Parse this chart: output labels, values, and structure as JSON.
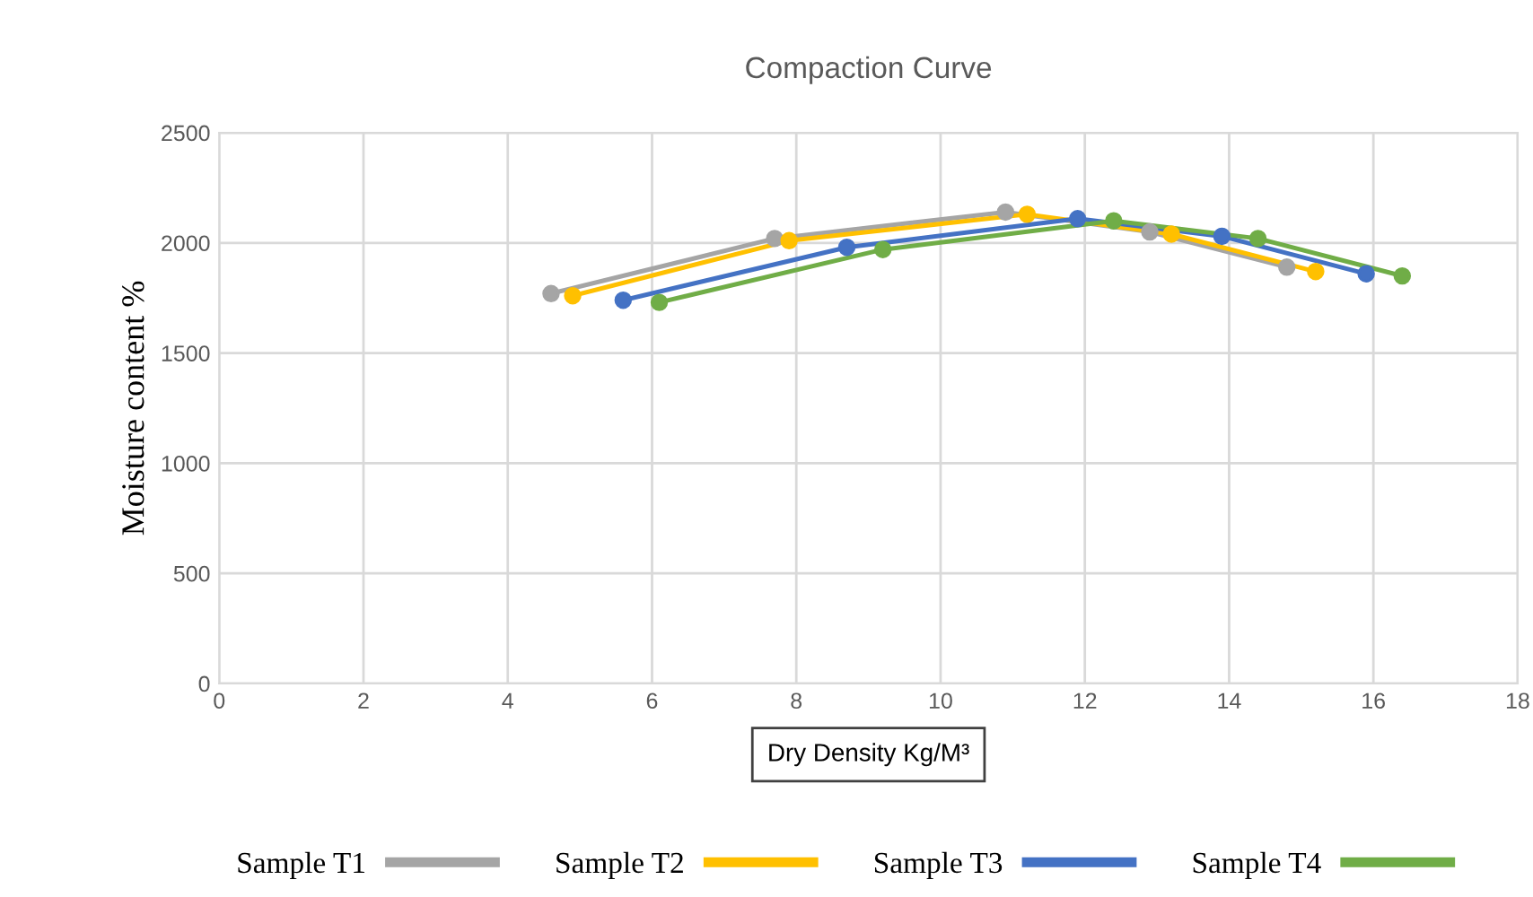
{
  "chart_data": {
    "type": "line",
    "title": "Compaction Curve",
    "xlabel": "Dry Density Kg/M³",
    "ylabel": "Moisture content %",
    "xlim": [
      0,
      18
    ],
    "xticks": [
      0,
      2,
      4,
      6,
      8,
      10,
      12,
      14,
      16,
      18
    ],
    "ylim": [
      0,
      2500
    ],
    "yticks": [
      0,
      500,
      1000,
      1500,
      2000,
      2500
    ],
    "grid": true,
    "legend": "bottom",
    "marker": "circle",
    "line_style": "solid",
    "series": [
      {
        "name": "Sample T1",
        "color": "#a5a5a5",
        "x": [
          4.6,
          7.7,
          10.9,
          12.9,
          14.8
        ],
        "values": [
          1770,
          2020,
          2140,
          2050,
          1890
        ]
      },
      {
        "name": "Sample T2",
        "color": "#ffc000",
        "x": [
          4.9,
          7.9,
          11.2,
          13.2,
          15.2
        ],
        "values": [
          1760,
          2010,
          2130,
          2040,
          1870
        ]
      },
      {
        "name": "Sample T3",
        "color": "#4472c4",
        "x": [
          5.6,
          8.7,
          11.9,
          13.9,
          15.9
        ],
        "values": [
          1740,
          1980,
          2110,
          2030,
          1860
        ]
      },
      {
        "name": "Sample T4",
        "color": "#70ad47",
        "x": [
          6.1,
          9.2,
          12.4,
          14.4,
          16.4
        ],
        "values": [
          1730,
          1970,
          2100,
          2020,
          1850
        ]
      }
    ]
  }
}
